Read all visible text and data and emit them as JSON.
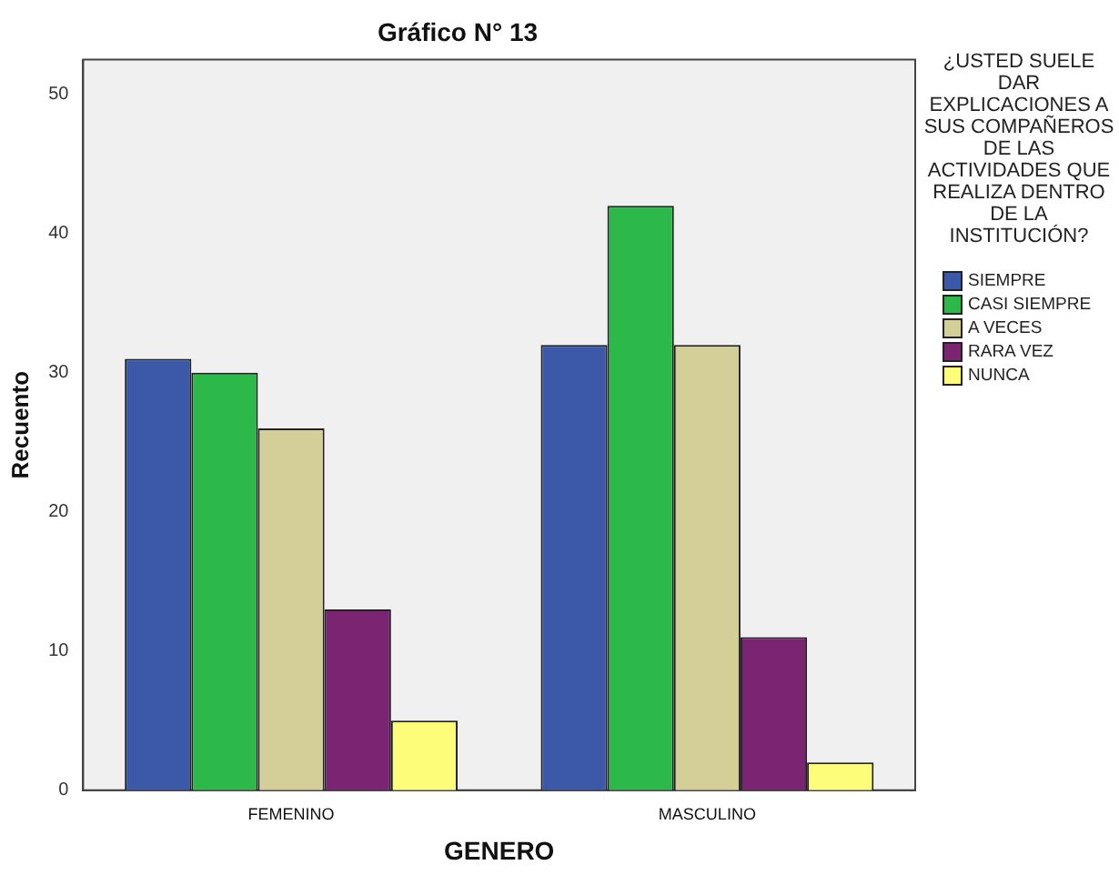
{
  "chart_data": {
    "type": "bar",
    "title": "Gráfico N° 13",
    "xlabel": "GENERO",
    "ylabel": "Recuento",
    "legend_title": "¿USTED SUELE DAR EXPLICACIONES A SUS COMPAÑEROS DE LAS ACTIVIDADES QUE REALIZA DENTRO DE LA INSTITUCIÓN?",
    "categories": [
      "FEMENINO",
      "MASCULINO"
    ],
    "series": [
      {
        "name": "SIEMPRE",
        "color": "#3c58a8",
        "values": [
          31,
          32
        ]
      },
      {
        "name": "CASI SIEMPRE",
        "color": "#2db84a",
        "values": [
          30,
          42
        ]
      },
      {
        "name": "A VECES",
        "color": "#d4cf98",
        "values": [
          26,
          32
        ]
      },
      {
        "name": "RARA VEZ",
        "color": "#7b2472",
        "values": [
          13,
          11
        ]
      },
      {
        "name": "NUNCA",
        "color": "#fdfd7a",
        "values": [
          5,
          2
        ]
      }
    ],
    "ylim": [
      0,
      52.5
    ],
    "yticks": [
      0,
      10,
      20,
      30,
      40,
      50
    ],
    "grid": false,
    "legend": "right"
  }
}
